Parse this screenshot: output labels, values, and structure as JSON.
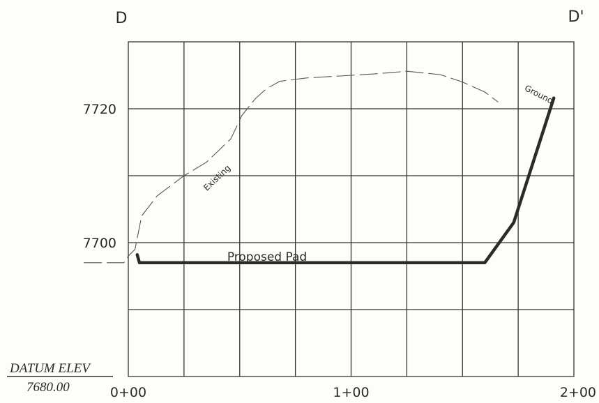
{
  "section": {
    "left_label": "D",
    "right_label": "D'"
  },
  "datum": {
    "title": "DATUM ELEV",
    "value": "7680.00"
  },
  "pad_label": "Proposed Pad",
  "ground_label_1": "Existing",
  "ground_label_2": "Ground",
  "chart_data": {
    "type": "line",
    "x_unit": "station (ft)",
    "y_unit": "elevation (ft)",
    "xlim": [
      0,
      200
    ],
    "ylim": [
      7680,
      7730
    ],
    "grid": true,
    "x_ticks": [
      {
        "value": 0,
        "label": "0+00"
      },
      {
        "value": 100,
        "label": "1+00"
      },
      {
        "value": 200,
        "label": "2+00"
      }
    ],
    "y_ticks": [
      {
        "value": 7700,
        "label": "7700"
      },
      {
        "value": 7720,
        "label": "7720"
      }
    ],
    "x_gridlines": [
      0,
      25,
      50,
      75,
      100,
      125,
      150,
      175,
      200
    ],
    "y_gridlines": [
      7690,
      7700,
      7710,
      7720
    ],
    "series": [
      {
        "style": "dashed",
        "color": "#555555",
        "points": [
          [
            -20,
            7697
          ],
          [
            -2,
            7697
          ],
          [
            0,
            7698
          ],
          [
            3,
            7699
          ],
          [
            6,
            7704
          ],
          [
            13,
            7707
          ],
          [
            25,
            7710
          ],
          [
            35,
            7712
          ],
          [
            46,
            7715.5
          ],
          [
            51,
            7719
          ],
          [
            57,
            7721.5
          ],
          [
            62,
            7723
          ],
          [
            68,
            7724.1
          ],
          [
            80,
            7724.6
          ],
          [
            95,
            7724.9
          ],
          [
            110,
            7725.2
          ],
          [
            125,
            7725.6
          ],
          [
            140,
            7725.1
          ],
          [
            150,
            7724
          ],
          [
            160,
            7722.5
          ],
          [
            166,
            7721
          ]
        ]
      },
      {
        "style": "solid",
        "color": "#2b2b2b",
        "points": [
          [
            4,
            7698.2
          ],
          [
            5,
            7697
          ],
          [
            160,
            7697
          ],
          [
            173,
            7703
          ],
          [
            191,
            7721.6
          ]
        ]
      }
    ]
  }
}
